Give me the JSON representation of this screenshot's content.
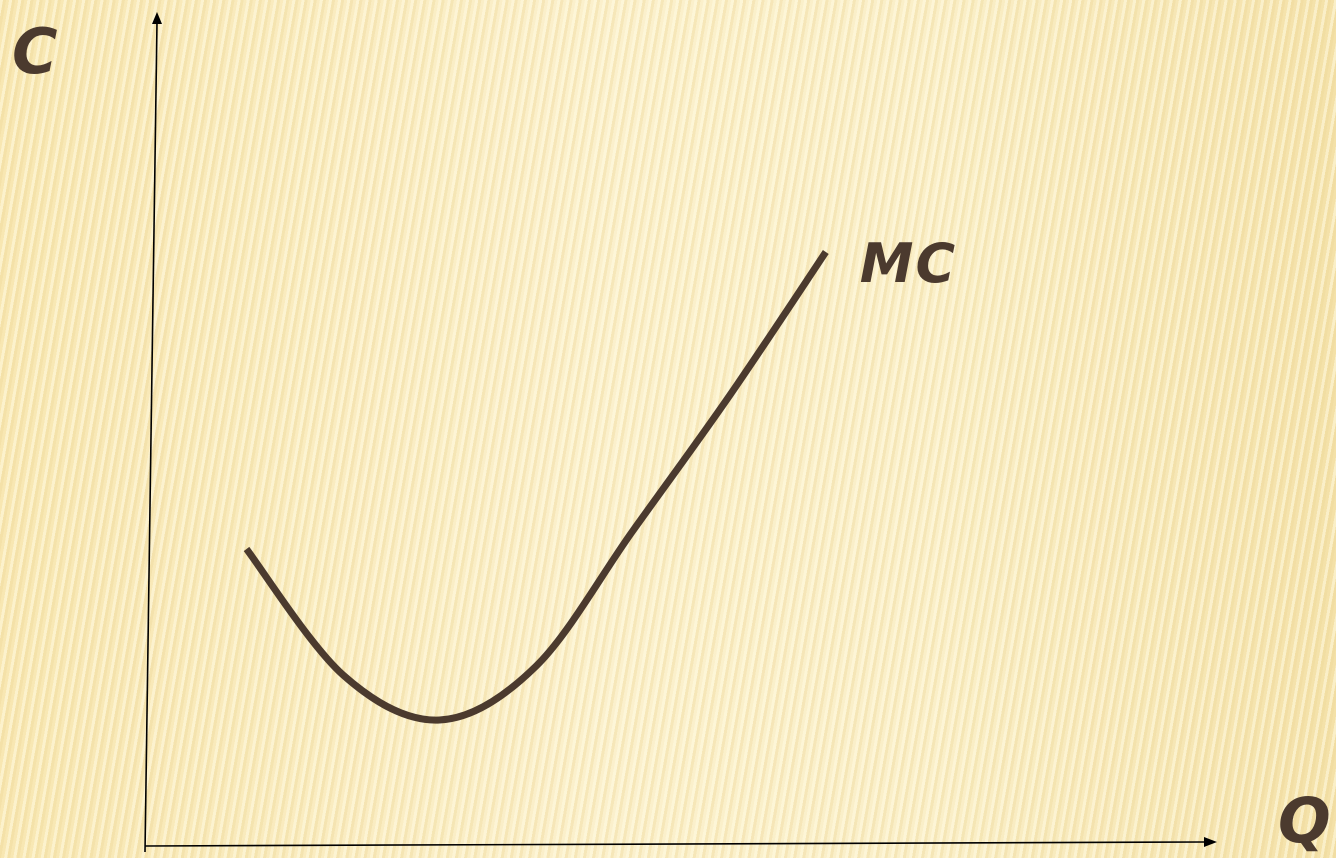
{
  "chart_data": {
    "type": "line",
    "title": "",
    "ylabel": "C",
    "xlabel": "Q",
    "grid": false,
    "legend": "none",
    "series": [
      {
        "name": "MC",
        "color": "#4b3a2e",
        "description_shape": "U-shaped marginal cost curve",
        "x": [
          1.0,
          2.0,
          3.0,
          4.0,
          5.0,
          6.0,
          7.0
        ],
        "y": [
          3.3,
          1.9,
          1.4,
          2.0,
          3.5,
          5.0,
          6.6
        ]
      }
    ],
    "xlim": [
      0,
      11
    ],
    "ylim": [
      0,
      9
    ],
    "axis_color": "#000000"
  }
}
